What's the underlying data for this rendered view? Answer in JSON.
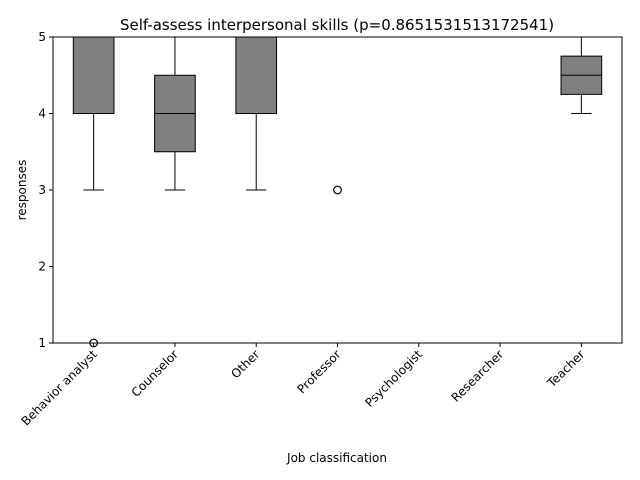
{
  "chart_data": {
    "type": "box",
    "title": "Self-assess interpersonal skills (p=0.8651531513172541)",
    "xlabel": "Job classification",
    "ylabel": "responses",
    "ylim": [
      1,
      5
    ],
    "yticks": [
      "1",
      "2",
      "3",
      "4",
      "5"
    ],
    "categories": [
      "Behavior analyst",
      "Counselor",
      "Other",
      "Professor",
      "Psychologist",
      "Researcher",
      "Teacher"
    ],
    "boxes": [
      {
        "whisker_low": 3,
        "q1": 4,
        "median": 5,
        "q3": 5,
        "whisker_high": 5,
        "outliers": [
          1
        ]
      },
      {
        "whisker_low": 3,
        "q1": 3.5,
        "median": 4,
        "q3": 4.5,
        "whisker_high": 5,
        "outliers": []
      },
      {
        "whisker_low": 3,
        "q1": 4,
        "median": 5,
        "q3": 5,
        "whisker_high": 5,
        "outliers": []
      },
      {
        "whisker_low": 5,
        "q1": 5,
        "median": 5,
        "q3": 5,
        "whisker_high": 5,
        "outliers": [
          3
        ]
      },
      {
        "whisker_low": 5,
        "q1": 5,
        "median": 5,
        "q3": 5,
        "whisker_high": 5,
        "outliers": []
      },
      {
        "whisker_low": 5,
        "q1": 5,
        "median": 5,
        "q3": 5,
        "whisker_high": 5,
        "outliers": []
      },
      {
        "whisker_low": 4,
        "q1": 4.25,
        "median": 4.5,
        "q3": 4.75,
        "whisker_high": 5,
        "outliers": []
      }
    ],
    "box_color": "#808080",
    "grid": false,
    "legend": "none"
  }
}
